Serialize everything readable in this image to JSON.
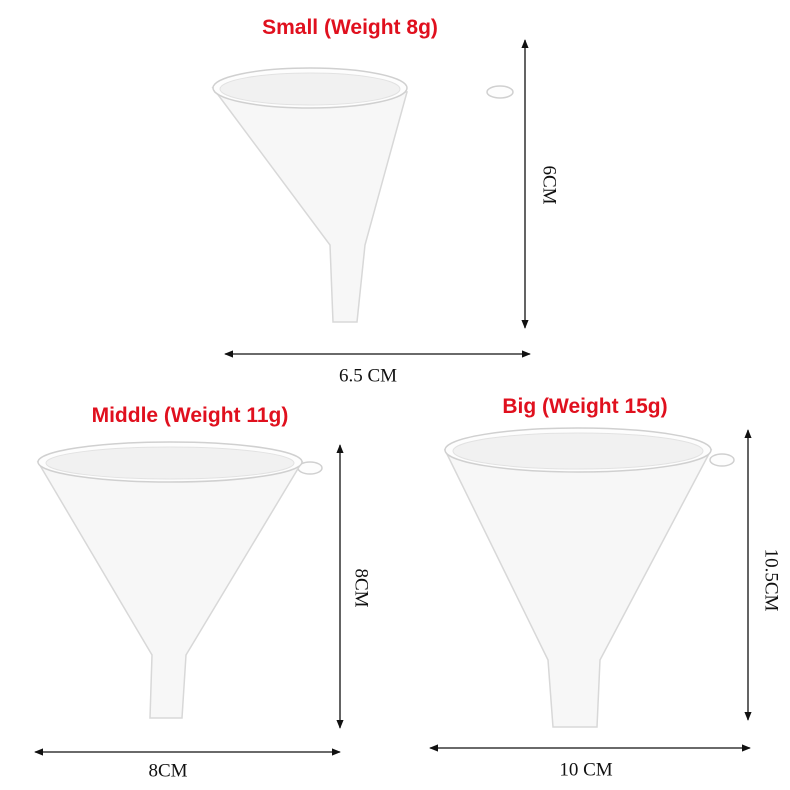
{
  "items": [
    {
      "title": "Small (Weight 8g)",
      "height": "6CM",
      "width": "6.5 CM"
    },
    {
      "title": "Middle (Weight 11g)",
      "height": "8CM",
      "width": "8CM"
    },
    {
      "title": "Big (Weight 15g)",
      "height": "10.5CM",
      "width": "10 CM"
    }
  ]
}
